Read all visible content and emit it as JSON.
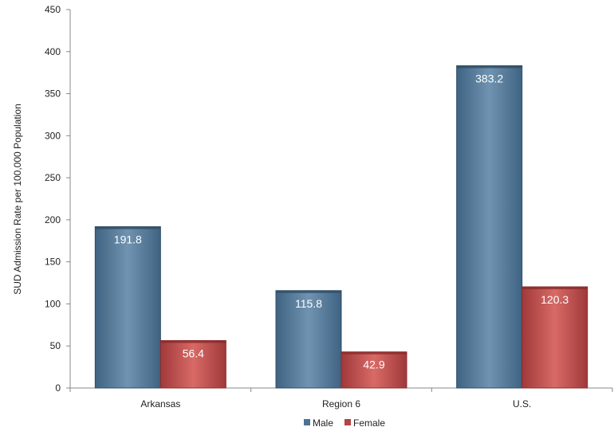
{
  "chart_data": {
    "type": "bar",
    "title": "",
    "xlabel": "",
    "ylabel": "SUD Admission Rate per 100,000 Population",
    "categories": [
      "Arkansas",
      "Region 6",
      "U.S."
    ],
    "series": [
      {
        "name": "Male",
        "values": [
          191.8,
          115.8,
          383.2
        ],
        "color": "#4d7292"
      },
      {
        "name": "Female",
        "values": [
          56.4,
          42.9,
          120.3
        ],
        "color": "#b34542"
      }
    ],
    "ylim": [
      0,
      450
    ],
    "yticks": [
      0,
      50,
      100,
      150,
      200,
      250,
      300,
      350,
      400,
      450
    ],
    "grid": false,
    "legend_position": "bottom"
  }
}
